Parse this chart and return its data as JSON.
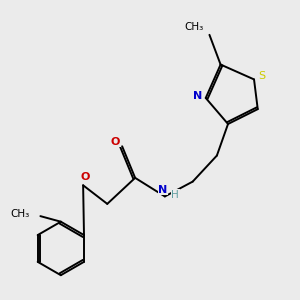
{
  "background_color": "#ebebeb",
  "atom_colors": {
    "C": "#000000",
    "N": "#0000cc",
    "O": "#cc0000",
    "S": "#cccc00",
    "H": "#5f9ea0"
  },
  "bond_color": "#000000",
  "bond_width": 1.4,
  "figsize": [
    3.0,
    3.0
  ],
  "dpi": 100
}
